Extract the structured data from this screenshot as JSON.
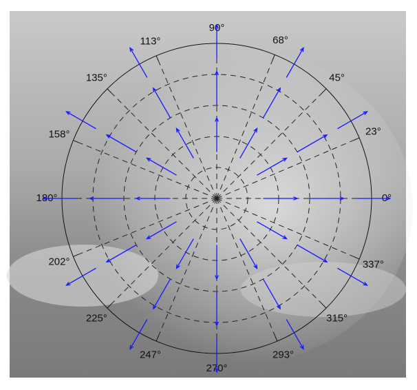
{
  "chart_data": {
    "type": "polar-quiver",
    "theta_ticks": [
      {
        "value": 0,
        "label": "0°"
      },
      {
        "value": 23,
        "label": "23°"
      },
      {
        "value": 45,
        "label": "45°"
      },
      {
        "value": 68,
        "label": "68°"
      },
      {
        "value": 90,
        "label": "90°"
      },
      {
        "value": 113,
        "label": "113°"
      },
      {
        "value": 135,
        "label": "135°"
      },
      {
        "value": 158,
        "label": "158°"
      },
      {
        "value": 180,
        "label": "180°"
      },
      {
        "value": 202,
        "label": "202°"
      },
      {
        "value": 225,
        "label": "225°"
      },
      {
        "value": 247,
        "label": "247°"
      },
      {
        "value": 270,
        "label": "270°"
      },
      {
        "value": 293,
        "label": "293°"
      },
      {
        "value": 315,
        "label": "315°"
      },
      {
        "value": 337,
        "label": "337°"
      }
    ],
    "rlim": [
      0,
      1
    ],
    "rticks": [
      0.2,
      0.4,
      0.6,
      0.8
    ],
    "color": "#1a1aff",
    "x": [
      0.3,
      0.26,
      0.15,
      0,
      -0.15,
      -0.26,
      -0.3,
      -0.26,
      -0.15,
      0,
      0.15,
      0.26,
      0.6,
      0.52,
      0.3,
      0,
      -0.3,
      -0.52,
      -0.6,
      -0.52,
      -0.3,
      0,
      0.3,
      0.52,
      0.9,
      0.78,
      0.45,
      0,
      -0.45,
      -0.78,
      -0.9,
      -0.78,
      -0.45,
      0,
      0.45,
      0.78
    ],
    "y": [
      0,
      0.15,
      0.26,
      0.3,
      0.26,
      0.15,
      0,
      -0.15,
      -0.26,
      -0.3,
      -0.26,
      -0.15,
      0,
      0.3,
      0.52,
      0.6,
      0.52,
      0.3,
      0,
      -0.3,
      -0.52,
      -0.6,
      -0.52,
      -0.3,
      0,
      0.45,
      0.78,
      0.9,
      0.78,
      0.45,
      0,
      -0.45,
      -0.78,
      -0.9,
      -0.78,
      -0.45
    ],
    "u": [
      0.1,
      0.087,
      0.05,
      0,
      -0.05,
      -0.087,
      -0.1,
      -0.087,
      -0.05,
      0,
      0.05,
      0.087,
      0.1,
      0.087,
      0.05,
      0,
      -0.05,
      -0.087,
      -0.1,
      -0.087,
      -0.05,
      0,
      0.05,
      0.087,
      0.1,
      0.087,
      0.05,
      0,
      -0.05,
      -0.087,
      -0.1,
      -0.087,
      -0.05,
      0,
      0.05,
      0.087
    ],
    "v": [
      0,
      0.05,
      0.087,
      0.1,
      0.087,
      0.05,
      0,
      -0.05,
      -0.087,
      -0.1,
      -0.087,
      -0.05,
      0,
      0.05,
      0.087,
      0.1,
      0.087,
      0.05,
      0,
      -0.05,
      -0.087,
      -0.1,
      -0.087,
      -0.05,
      0,
      0.05,
      0.087,
      0.1,
      0.087,
      0.05,
      0,
      -0.05,
      -0.087,
      -0.1,
      -0.087,
      -0.05
    ]
  }
}
